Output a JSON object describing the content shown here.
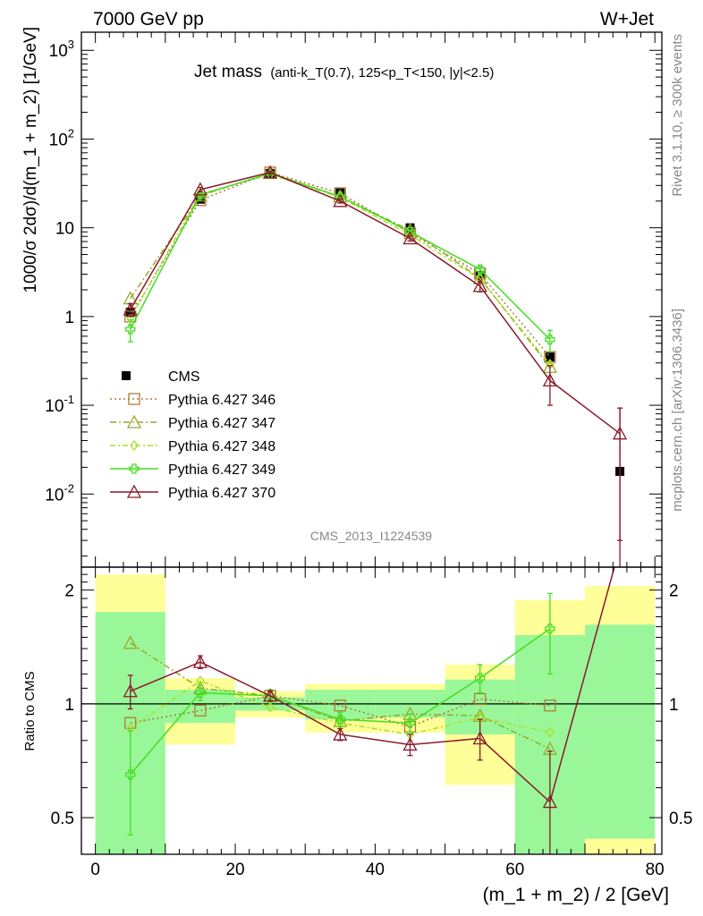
{
  "header": {
    "left": "7000 GeV pp",
    "right": "W+Jet"
  },
  "side": {
    "rivet": "Rivet 3.1.10, ≥ 300k events",
    "mcplots": "mcplots.cern.ch [arXiv:1306.3436]"
  },
  "chart_data": [
    {
      "type": "line",
      "title_main": "Jet mass",
      "title_sub": "(anti-k_T(0.7), 125<p_T<150, |y|<2.5)",
      "analysis": "CMS_2013_I1224539",
      "ylabel": "1000/σ 2dσ)/d(m_1 + m_2) [1/GeV]",
      "yscale": "log",
      "ylim": [
        0.0015,
        1600
      ],
      "xlim": [
        -2,
        81
      ],
      "yticks": [
        "10^-2",
        "10^-1",
        "1",
        "10",
        "10^2",
        "10^3"
      ],
      "legend": "left",
      "data": {
        "name": "CMS",
        "color": "#000000",
        "x": [
          5,
          15,
          25,
          35,
          45,
          55,
          65,
          75
        ],
        "y": [
          1.12,
          21.0,
          41.0,
          25.0,
          10.0,
          2.9,
          0.35,
          0.018
        ]
      },
      "series": [
        {
          "name": "Pythia 6.427 346",
          "color": "#b07a3a",
          "dash": "2,3",
          "marker": "square",
          "x": [
            5,
            15,
            25,
            35,
            45,
            55,
            65
          ],
          "y": [
            1.0,
            20.5,
            42.0,
            24.5,
            8.7,
            3.05,
            0.35
          ]
        },
        {
          "name": "Pythia 6.427 347",
          "color": "#9aa82a",
          "dash": "7,3,2,3",
          "marker": "triangle",
          "x": [
            5,
            15,
            25,
            35,
            45,
            55,
            65
          ],
          "y": [
            1.6,
            23.0,
            41.5,
            22.5,
            9.4,
            2.7,
            0.27
          ]
        },
        {
          "name": "Pythia 6.427 348",
          "color": "#a8e02a",
          "dash": "6,3,2,3",
          "marker": "diamond",
          "x": [
            5,
            15,
            25,
            35,
            45,
            55,
            65
          ],
          "y": [
            0.95,
            24.0,
            40.0,
            22.0,
            8.3,
            2.65,
            0.29
          ]
        },
        {
          "name": "Pythia 6.427 349",
          "color": "#44dd22",
          "dash": "",
          "marker": "cross",
          "x": [
            5,
            15,
            25,
            35,
            45,
            55,
            65
          ],
          "y": [
            0.72,
            23.5,
            41.0,
            22.5,
            9.0,
            3.4,
            0.55
          ],
          "err": [
            0.2,
            1.2,
            1.5,
            1.0,
            0.5,
            0.3,
            0.15
          ]
        },
        {
          "name": "Pythia 6.427 370",
          "color": "#8b1a2a",
          "dash": "",
          "marker": "triangle",
          "x": [
            5,
            15,
            25,
            35,
            45,
            55,
            65,
            75
          ],
          "y": [
            1.2,
            27.0,
            42.0,
            20.0,
            7.6,
            2.2,
            0.19,
            0.048
          ],
          "err": [
            0.2,
            1.5,
            1.5,
            1.0,
            0.5,
            0.3,
            0.09,
            0.045
          ]
        }
      ]
    },
    {
      "type": "line",
      "ylabel": "Ratio to CMS",
      "xlabel": "(m_1 + m_2) / 2 [GeV]",
      "yscale": "log",
      "ylim": [
        0.4,
        2.3
      ],
      "xlim": [
        -2,
        81
      ],
      "xticks": [
        0,
        20,
        40,
        60,
        80
      ],
      "yticks": [
        0.5,
        1,
        2
      ],
      "bands": {
        "edges": [
          0,
          10,
          20,
          30,
          40,
          50,
          60,
          70,
          80
        ],
        "yellow": [
          [
            0.4,
            2.2
          ],
          [
            0.78,
            1.17
          ],
          [
            0.92,
            1.08
          ],
          [
            0.84,
            1.13
          ],
          [
            0.84,
            1.13
          ],
          [
            0.61,
            1.27
          ],
          [
            0.4,
            1.88
          ],
          [
            0.4,
            2.05
          ]
        ],
        "green": [
          [
            0.4,
            1.75
          ],
          [
            0.89,
            1.09
          ],
          [
            0.96,
            1.04
          ],
          [
            0.91,
            1.09
          ],
          [
            0.92,
            1.09
          ],
          [
            0.83,
            1.16
          ],
          [
            0.4,
            1.52
          ],
          [
            0.44,
            1.62
          ]
        ]
      },
      "series": [
        {
          "name": "Pythia 6.427 346",
          "color": "#b07a3a",
          "dash": "2,3",
          "marker": "square",
          "x": [
            5,
            15,
            25,
            35,
            45,
            55,
            65
          ],
          "y": [
            0.89,
            0.96,
            1.05,
            0.99,
            0.87,
            1.03,
            0.99
          ]
        },
        {
          "name": "Pythia 6.427 347",
          "color": "#9aa82a",
          "dash": "7,3,2,3",
          "marker": "triangle",
          "x": [
            5,
            15,
            25,
            35,
            45,
            55,
            65
          ],
          "y": [
            1.45,
            1.1,
            1.05,
            0.9,
            0.94,
            0.93,
            0.76
          ]
        },
        {
          "name": "Pythia 6.427 348",
          "color": "#a8e02a",
          "dash": "6,3,2,3",
          "marker": "diamond",
          "x": [
            5,
            15,
            25,
            35,
            45,
            55,
            65
          ],
          "y": [
            0.86,
            1.15,
            0.98,
            0.89,
            0.83,
            0.92,
            0.84
          ]
        },
        {
          "name": "Pythia 6.427 349",
          "color": "#44dd22",
          "dash": "",
          "marker": "cross",
          "x": [
            5,
            15,
            25,
            35,
            45,
            55,
            65
          ],
          "y": [
            0.65,
            1.07,
            1.05,
            0.91,
            0.89,
            1.17,
            1.58
          ],
          "err": [
            0.2,
            0.05,
            0.04,
            0.04,
            0.05,
            0.1,
            0.38
          ]
        },
        {
          "name": "Pythia 6.427 370",
          "color": "#8b1a2a",
          "dash": "",
          "marker": "triangle",
          "x": [
            5,
            15,
            25,
            35,
            45,
            55,
            65,
            75
          ],
          "y": [
            1.08,
            1.29,
            1.05,
            0.83,
            0.78,
            0.81,
            0.55,
            2.6
          ],
          "err": [
            0.11,
            0.05,
            0.03,
            0.03,
            0.05,
            0.1,
            0.2,
            0
          ]
        }
      ]
    }
  ]
}
